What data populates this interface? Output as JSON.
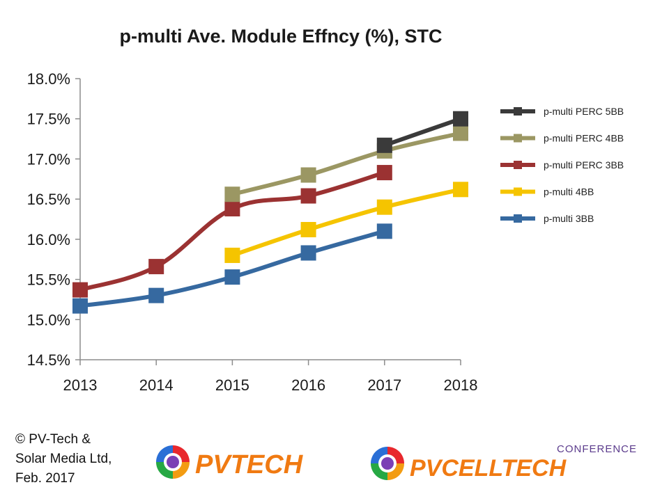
{
  "chart_data": {
    "type": "line",
    "title": "p-multi Ave. Module Effncy (%), STC",
    "xlabel": "",
    "ylabel": "",
    "x": [
      2013,
      2014,
      2015,
      2016,
      2017,
      2018
    ],
    "x_tick_labels": [
      "2013",
      "2014",
      "2015",
      "2016",
      "2017",
      "2018"
    ],
    "ylim": [
      14.5,
      18.0
    ],
    "y_ticks": [
      14.5,
      15.0,
      15.5,
      16.0,
      16.5,
      17.0,
      17.5,
      18.0
    ],
    "y_tick_labels": [
      "14.5%",
      "15.0%",
      "15.5%",
      "16.0%",
      "16.5%",
      "17.0%",
      "17.5%",
      "18.0%"
    ],
    "grid": false,
    "legend_position": "right",
    "series": [
      {
        "name": "p-multi PERC 5BB",
        "color": "#3a3a3a",
        "values": [
          null,
          null,
          null,
          null,
          17.17,
          17.5
        ]
      },
      {
        "name": "p-multi PERC 4BB",
        "color": "#9b9763",
        "values": [
          null,
          null,
          16.56,
          16.8,
          17.1,
          17.32
        ]
      },
      {
        "name": "p-multi PERC 3BB",
        "color": "#9b3232",
        "values": [
          15.37,
          15.66,
          16.38,
          16.54,
          16.83,
          null
        ]
      },
      {
        "name": "p-multi 4BB",
        "color": "#f5c400",
        "values": [
          null,
          null,
          15.8,
          16.12,
          16.4,
          16.62
        ]
      },
      {
        "name": "p-multi 3BB",
        "color": "#3669a0",
        "values": [
          15.17,
          15.3,
          15.53,
          15.83,
          16.1,
          null
        ]
      }
    ]
  },
  "footer": {
    "copyright": "© PV-Tech &\nSolar Media Ltd,\nFeb. 2017",
    "logo_pvtech": "PVTECH",
    "logo_conference": "CONFERENCE",
    "logo_pvcelltech": "PVCELLTECH"
  }
}
